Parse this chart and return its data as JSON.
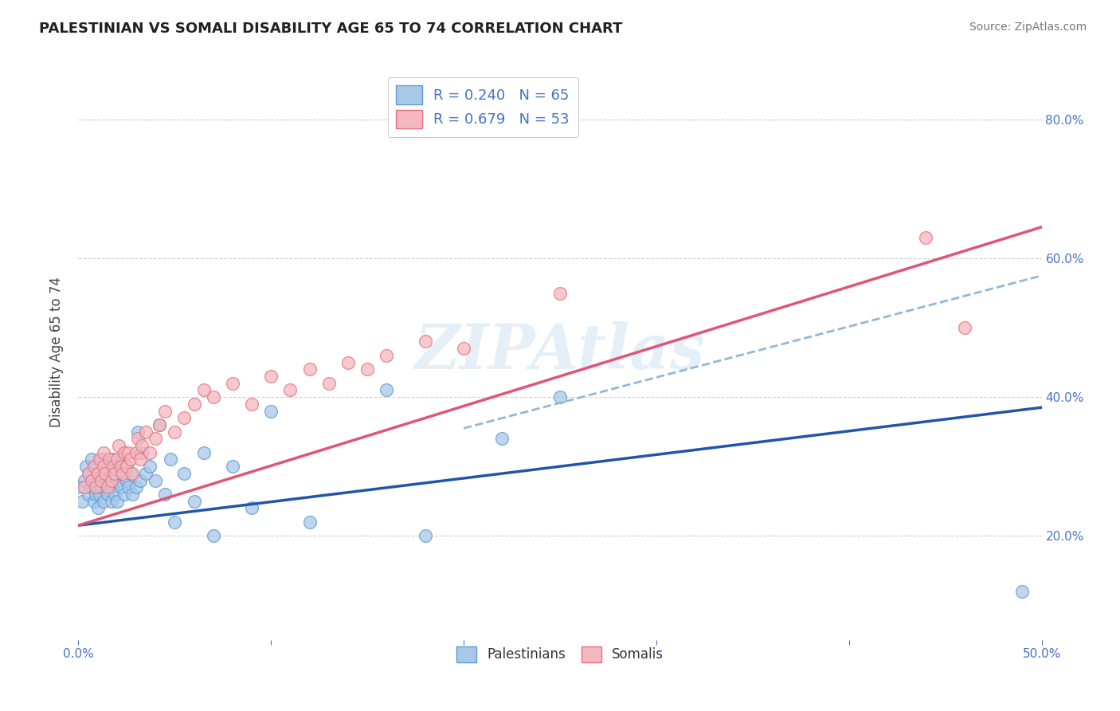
{
  "title": "PALESTINIAN VS SOMALI DISABILITY AGE 65 TO 74 CORRELATION CHART",
  "source": "Source: ZipAtlas.com",
  "ylabel": "Disability Age 65 to 74",
  "watermark": "ZIPAtlas",
  "xlim": [
    0.0,
    0.5
  ],
  "ylim": [
    0.05,
    0.88
  ],
  "xticklabels_show": [
    "0.0%",
    "50.0%"
  ],
  "yticks_right": [
    0.2,
    0.4,
    0.6,
    0.8
  ],
  "yticklabels_right": [
    "20.0%",
    "40.0%",
    "60.0%",
    "80.0%"
  ],
  "grid_color": "#cccccc",
  "background_color": "#ffffff",
  "palestinians_face": "#a8c8e8",
  "palestinians_edge": "#5b9bd5",
  "somalis_face": "#f4b8c0",
  "somalis_edge": "#e87080",
  "trendline_blue": "#2255aa",
  "trendline_pink": "#e05575",
  "trendline_dashed": "#90b8d8",
  "axis_color": "#4472c4",
  "legend_text_color": "#4472c4",
  "legend_label_blue": "R = 0.240   N = 65",
  "legend_label_pink": "R = 0.679   N = 53",
  "bottom_label_pal": "Palestinians",
  "bottom_label_som": "Somalis",
  "title_fontsize": 13,
  "blue_trend_x0": 0.0,
  "blue_trend_y0": 0.215,
  "blue_trend_x1": 0.5,
  "blue_trend_y1": 0.385,
  "pink_trend_x0": 0.0,
  "pink_trend_y0": 0.215,
  "pink_trend_x1": 0.5,
  "pink_trend_y1": 0.645,
  "dashed_trend_x0": 0.2,
  "dashed_trend_y0": 0.355,
  "dashed_trend_x1": 0.5,
  "dashed_trend_y1": 0.575,
  "palestinians_x": [
    0.0,
    0.002,
    0.003,
    0.004,
    0.005,
    0.006,
    0.007,
    0.007,
    0.008,
    0.008,
    0.009,
    0.009,
    0.01,
    0.01,
    0.01,
    0.011,
    0.012,
    0.012,
    0.013,
    0.013,
    0.014,
    0.015,
    0.015,
    0.016,
    0.017,
    0.017,
    0.018,
    0.018,
    0.019,
    0.02,
    0.02,
    0.021,
    0.022,
    0.022,
    0.023,
    0.024,
    0.025,
    0.025,
    0.026,
    0.027,
    0.028,
    0.03,
    0.031,
    0.032,
    0.033,
    0.035,
    0.037,
    0.04,
    0.042,
    0.045,
    0.048,
    0.05,
    0.055,
    0.06,
    0.065,
    0.07,
    0.08,
    0.09,
    0.1,
    0.12,
    0.16,
    0.18,
    0.22,
    0.25,
    0.49
  ],
  "palestinians_y": [
    0.27,
    0.25,
    0.28,
    0.3,
    0.26,
    0.29,
    0.27,
    0.31,
    0.25,
    0.28,
    0.26,
    0.3,
    0.24,
    0.27,
    0.29,
    0.26,
    0.27,
    0.31,
    0.25,
    0.29,
    0.28,
    0.26,
    0.3,
    0.28,
    0.25,
    0.27,
    0.29,
    0.31,
    0.26,
    0.25,
    0.28,
    0.3,
    0.27,
    0.29,
    0.31,
    0.26,
    0.28,
    0.3,
    0.27,
    0.29,
    0.26,
    0.27,
    0.35,
    0.28,
    0.32,
    0.29,
    0.3,
    0.28,
    0.36,
    0.26,
    0.31,
    0.22,
    0.29,
    0.25,
    0.32,
    0.2,
    0.3,
    0.24,
    0.38,
    0.22,
    0.41,
    0.2,
    0.34,
    0.4,
    0.12
  ],
  "somalis_x": [
    0.003,
    0.005,
    0.007,
    0.008,
    0.009,
    0.01,
    0.011,
    0.012,
    0.013,
    0.013,
    0.014,
    0.015,
    0.016,
    0.017,
    0.018,
    0.019,
    0.02,
    0.021,
    0.022,
    0.023,
    0.024,
    0.025,
    0.026,
    0.027,
    0.028,
    0.03,
    0.031,
    0.032,
    0.033,
    0.035,
    0.037,
    0.04,
    0.042,
    0.045,
    0.05,
    0.055,
    0.06,
    0.065,
    0.07,
    0.08,
    0.09,
    0.1,
    0.11,
    0.12,
    0.13,
    0.14,
    0.15,
    0.16,
    0.18,
    0.2,
    0.25,
    0.44,
    0.46
  ],
  "somalis_y": [
    0.27,
    0.29,
    0.28,
    0.3,
    0.27,
    0.29,
    0.31,
    0.28,
    0.3,
    0.32,
    0.29,
    0.27,
    0.31,
    0.28,
    0.3,
    0.29,
    0.31,
    0.33,
    0.3,
    0.29,
    0.32,
    0.3,
    0.32,
    0.31,
    0.29,
    0.32,
    0.34,
    0.31,
    0.33,
    0.35,
    0.32,
    0.34,
    0.36,
    0.38,
    0.35,
    0.37,
    0.39,
    0.41,
    0.4,
    0.42,
    0.39,
    0.43,
    0.41,
    0.44,
    0.42,
    0.45,
    0.44,
    0.46,
    0.48,
    0.47,
    0.55,
    0.63,
    0.5
  ]
}
